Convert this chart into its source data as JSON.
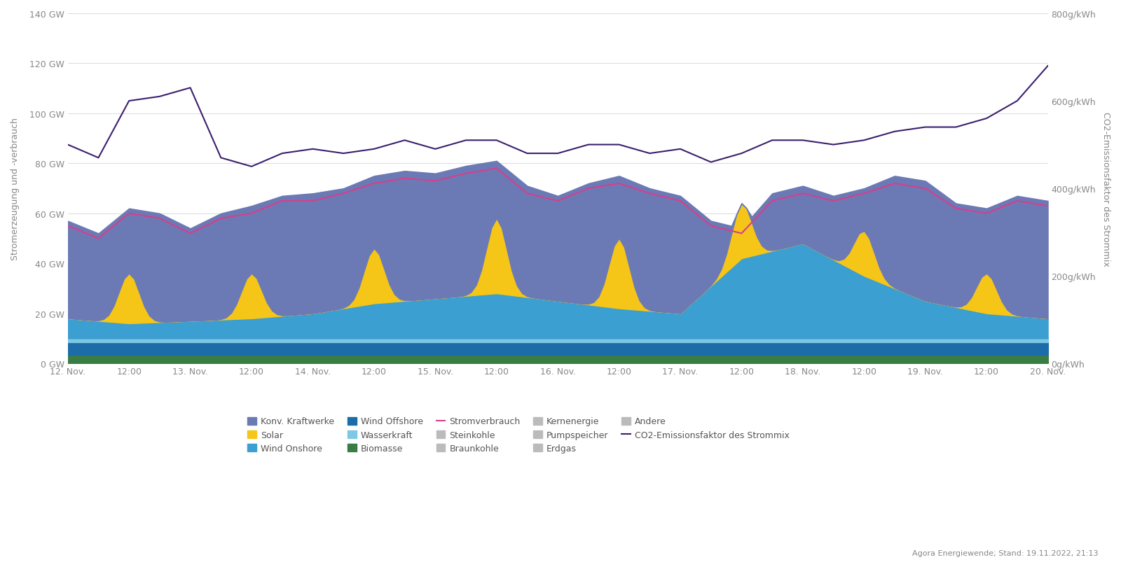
{
  "ylabel_left": "Stromerzeugung und -verbrauch",
  "ylabel_right": "CO2-Emissionsfaktor des Strommix",
  "ylim_left": [
    0,
    140
  ],
  "ylim_right": [
    0,
    800
  ],
  "yticks_left": [
    0,
    20,
    40,
    60,
    80,
    100,
    120,
    140
  ],
  "ytick_labels_left": [
    "0 GW",
    "20 GW",
    "40 GW",
    "60 GW",
    "80 GW",
    "100 GW",
    "120 GW",
    "140 GW"
  ],
  "yticks_right": [
    0,
    200,
    400,
    600,
    800
  ],
  "ytick_labels_right": [
    "0g/kWh",
    "200g/kWh",
    "400g/kWh",
    "600g/kWh",
    "800g/kWh"
  ],
  "xtick_positions": [
    0,
    12,
    24,
    36,
    48,
    60,
    72,
    84,
    96,
    108,
    120,
    132,
    144,
    156,
    168,
    180,
    192
  ],
  "xtick_labels": [
    "12. Nov.",
    "12:00",
    "13. Nov.",
    "12:00",
    "14. Nov.",
    "12:00",
    "15. Nov.",
    "12:00",
    "16. Nov.",
    "12:00",
    "17. Nov.",
    "12:00",
    "18. Nov.",
    "12:00",
    "19. Nov.",
    "12:00",
    "20. Nov."
  ],
  "colors": {
    "biomasse": "#3a7d44",
    "konv_kraftwerke": "#6b7ab5",
    "solar": "#f5c518",
    "wind_onshore": "#3b9fd1",
    "wind_offshore": "#1b6ca8",
    "wasserkraft": "#7ec8e3",
    "stromverbrauch": "#d63f8c",
    "co2": "#3b1f6e",
    "background": "#ffffff",
    "grid": "#cccccc",
    "gray_legend": "#bbbbbb"
  },
  "footnote": "Agora Energiewende; Stand: 19.11.2022, 21:13",
  "wo_control_x": [
    0,
    12,
    24,
    36,
    48,
    60,
    72,
    84,
    96,
    108,
    120,
    132,
    144,
    156,
    168,
    180,
    192
  ],
  "wo_control_y": [
    8,
    6,
    7,
    8,
    10,
    14,
    16,
    18,
    15,
    12,
    10,
    32,
    38,
    25,
    15,
    10,
    8
  ],
  "sv_control_x": [
    0,
    6,
    12,
    18,
    24,
    30,
    36,
    42,
    48,
    54,
    60,
    66,
    72,
    78,
    84,
    90,
    96,
    102,
    108,
    114,
    120,
    126,
    132,
    138,
    144,
    150,
    156,
    162,
    168,
    174,
    180,
    186,
    192
  ],
  "sv_control_y": [
    55,
    50,
    60,
    58,
    52,
    58,
    60,
    65,
    65,
    68,
    72,
    74,
    73,
    76,
    78,
    68,
    65,
    70,
    72,
    68,
    65,
    55,
    52,
    65,
    68,
    65,
    68,
    72,
    70,
    62,
    60,
    65,
    63
  ],
  "total_control_x": [
    0,
    6,
    12,
    18,
    24,
    30,
    36,
    42,
    48,
    54,
    60,
    66,
    72,
    78,
    84,
    90,
    96,
    102,
    108,
    114,
    120,
    126,
    132,
    138,
    144,
    150,
    156,
    162,
    168,
    174,
    180,
    186,
    192
  ],
  "total_control_y": [
    57,
    52,
    62,
    60,
    54,
    60,
    63,
    67,
    68,
    70,
    75,
    77,
    76,
    79,
    81,
    71,
    67,
    72,
    75,
    70,
    67,
    57,
    54,
    68,
    71,
    67,
    70,
    75,
    73,
    64,
    62,
    67,
    65
  ],
  "co2_control_x": [
    0,
    6,
    12,
    18,
    24,
    30,
    36,
    42,
    48,
    54,
    60,
    66,
    72,
    78,
    84,
    90,
    96,
    102,
    108,
    114,
    120,
    126,
    132,
    138,
    144,
    150,
    156,
    162,
    168,
    174,
    180,
    186,
    192
  ],
  "co2_control_y": [
    500,
    470,
    600,
    610,
    630,
    470,
    450,
    480,
    490,
    480,
    490,
    510,
    490,
    510,
    510,
    480,
    480,
    500,
    500,
    480,
    490,
    460,
    480,
    510,
    510,
    500,
    510,
    530,
    540,
    540,
    560,
    600,
    680
  ],
  "solar_day_peaks": [
    20,
    18,
    22,
    30,
    28,
    22,
    18,
    16,
    0
  ],
  "biomasse_val": 3.5,
  "wind_offshore_val": 5.0,
  "wasserkraft_val": 1.5
}
